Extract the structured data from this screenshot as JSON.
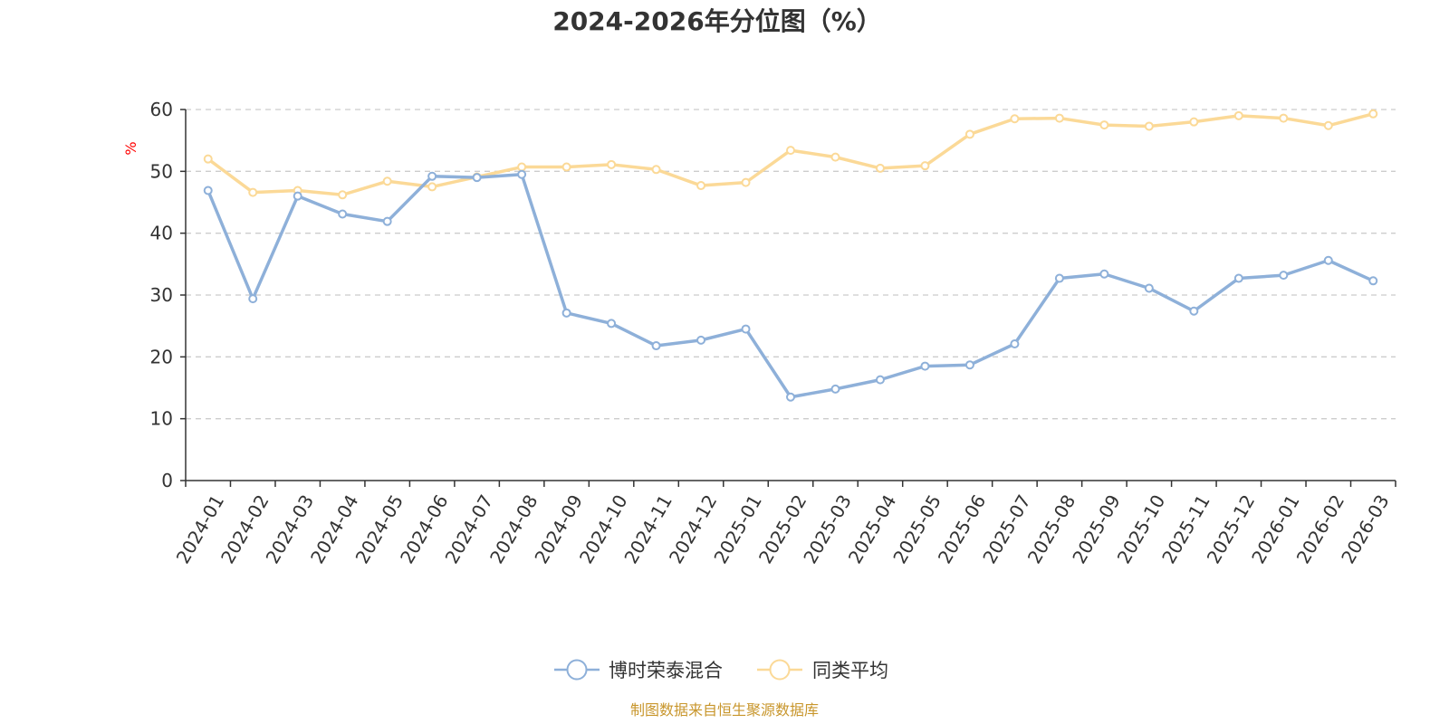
{
  "chart_data": {
    "type": "line",
    "title": "2024-2026年分位图（%）",
    "ylabel": "%",
    "xlabel": "",
    "ylim": [
      0,
      60
    ],
    "yticks": [
      0,
      10,
      20,
      30,
      40,
      50,
      60
    ],
    "grid": true,
    "legend_position": "bottom-center",
    "categories": [
      "2024-01",
      "2024-02",
      "2024-03",
      "2024-04",
      "2024-05",
      "2024-06",
      "2024-07",
      "2024-08",
      "2024-09",
      "2024-10",
      "2024-11",
      "2024-12",
      "2025-01",
      "2025-02",
      "2025-03",
      "2025-04",
      "2025-05",
      "2025-06",
      "2025-07",
      "2025-08",
      "2025-09",
      "2025-10",
      "2025-11",
      "2025-12",
      "2026-01",
      "2026-02",
      "2026-03"
    ],
    "series": [
      {
        "name": "博时荣泰混合",
        "color": "#8eb0d9",
        "values": [
          46.9,
          29.4,
          46.0,
          43.1,
          41.9,
          49.2,
          49.0,
          49.5,
          27.1,
          25.4,
          21.8,
          22.7,
          24.5,
          13.5,
          14.8,
          16.3,
          18.5,
          18.7,
          22.1,
          32.7,
          33.4,
          31.1,
          27.4,
          32.7,
          33.2,
          35.6,
          32.3
        ]
      },
      {
        "name": "同类平均",
        "color": "#fbd997",
        "values": [
          52.0,
          46.6,
          46.9,
          46.2,
          48.4,
          47.5,
          49.1,
          50.7,
          50.7,
          51.1,
          50.3,
          47.7,
          48.2,
          53.4,
          52.3,
          50.5,
          50.9,
          56.0,
          58.5,
          58.6,
          57.5,
          57.3,
          58.0,
          59.0,
          58.6,
          57.4,
          59.3
        ]
      }
    ]
  },
  "source": "制图数据来自恒生聚源数据库",
  "colors": {
    "axis": "#333333",
    "grid": "#cccccc",
    "ylabel": "#ff0000",
    "source": "#c8962c"
  }
}
